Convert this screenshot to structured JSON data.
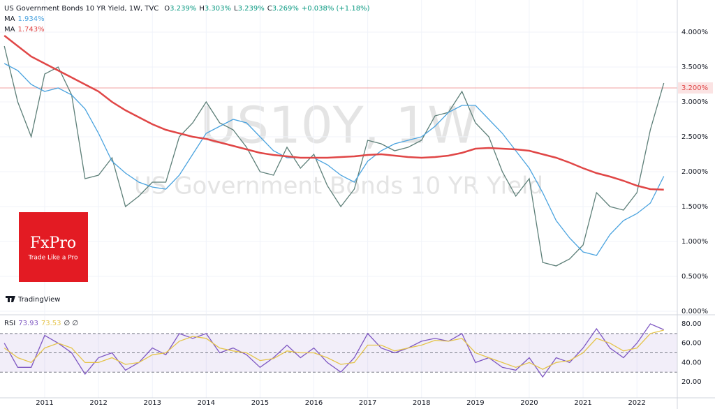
{
  "chart_data": [
    {
      "type": "line",
      "title": "US Government Bonds 10 YR Yield, 1W, TVC",
      "ohlc": [
        {
          "key": "O",
          "label": "3.239%"
        },
        {
          "key": "H",
          "label": "3.303%"
        },
        {
          "key": "L",
          "label": "3.239%"
        },
        {
          "key": "C",
          "label": "3.269%"
        }
      ],
      "change": "+0.038% (+1.18%)",
      "watermark": "US10Y, 1W",
      "watermark_subtitle": "US Government Bonds 10 YR Yield",
      "x": [
        2010.25,
        2010.5,
        2010.75,
        2011,
        2011.25,
        2011.5,
        2011.75,
        2012,
        2012.25,
        2012.5,
        2012.75,
        2013,
        2013.25,
        2013.5,
        2013.75,
        2014,
        2014.25,
        2014.5,
        2014.75,
        2015,
        2015.25,
        2015.5,
        2015.75,
        2016,
        2016.25,
        2016.5,
        2016.75,
        2017,
        2017.25,
        2017.5,
        2017.75,
        2018,
        2018.25,
        2018.5,
        2018.75,
        2019,
        2019.25,
        2019.5,
        2019.75,
        2020,
        2020.25,
        2020.5,
        2020.75,
        2021,
        2021.25,
        2021.5,
        2021.75,
        2022,
        2022.25,
        2022.5
      ],
      "series": [
        {
          "color": "#5d7f78",
          "values": [
            3.8,
            3.0,
            2.5,
            3.4,
            3.5,
            3.1,
            1.9,
            1.95,
            2.2,
            1.5,
            1.65,
            1.85,
            1.85,
            2.5,
            2.7,
            3.0,
            2.7,
            2.6,
            2.35,
            2.0,
            1.95,
            2.35,
            2.05,
            2.25,
            1.8,
            1.5,
            1.75,
            2.45,
            2.4,
            2.3,
            2.35,
            2.45,
            2.8,
            2.85,
            3.15,
            2.7,
            2.5,
            2.0,
            1.65,
            1.9,
            0.7,
            0.65,
            0.75,
            0.95,
            1.7,
            1.5,
            1.45,
            1.7,
            2.6,
            3.27
          ]
        },
        {
          "name": "MA",
          "legend_label": "1.934%",
          "color": "#4aa3df",
          "values": [
            3.55,
            3.45,
            3.25,
            3.15,
            3.2,
            3.1,
            2.9,
            2.55,
            2.15,
            1.98,
            1.85,
            1.78,
            1.75,
            1.95,
            2.25,
            2.55,
            2.65,
            2.75,
            2.7,
            2.5,
            2.3,
            2.2,
            2.2,
            2.2,
            2.1,
            1.95,
            1.85,
            2.15,
            2.3,
            2.4,
            2.45,
            2.5,
            2.65,
            2.85,
            2.95,
            2.95,
            2.75,
            2.55,
            2.3,
            2.05,
            1.7,
            1.3,
            1.05,
            0.85,
            0.8,
            1.1,
            1.3,
            1.4,
            1.55,
            1.934
          ]
        },
        {
          "name": "MA",
          "legend_label": "1.743%",
          "color": "#e04646",
          "values": [
            3.95,
            3.8,
            3.65,
            3.55,
            3.45,
            3.35,
            3.25,
            3.15,
            3.0,
            2.88,
            2.78,
            2.68,
            2.6,
            2.55,
            2.5,
            2.47,
            2.42,
            2.37,
            2.32,
            2.27,
            2.24,
            2.22,
            2.2,
            2.2,
            2.2,
            2.21,
            2.22,
            2.24,
            2.25,
            2.23,
            2.21,
            2.2,
            2.21,
            2.23,
            2.27,
            2.33,
            2.34,
            2.33,
            2.32,
            2.3,
            2.25,
            2.2,
            2.13,
            2.05,
            1.98,
            1.93,
            1.87,
            1.8,
            1.75,
            1.743
          ]
        }
      ],
      "price_line": {
        "value": 3.2,
        "label": "3.200%"
      },
      "xlim": [
        2010.17,
        2022.75
      ],
      "ylim": [
        -0.04,
        4.46
      ],
      "yticks": [
        {
          "value": 0,
          "label": "0.000%"
        },
        {
          "value": 0.5,
          "label": "0.500%"
        },
        {
          "value": 1,
          "label": "1.000%"
        },
        {
          "value": 1.5,
          "label": "1.500%"
        },
        {
          "value": 2,
          "label": "2.000%"
        },
        {
          "value": 2.5,
          "label": "2.500%"
        },
        {
          "value": 3,
          "label": "3.000%"
        },
        {
          "value": 3.5,
          "label": "3.500%"
        },
        {
          "value": 4,
          "label": "4.000%"
        }
      ],
      "grid": true
    },
    {
      "type": "line",
      "title": "RSI",
      "legend_extra": "∅ ∅",
      "x": [
        2010.25,
        2010.5,
        2010.75,
        2011,
        2011.25,
        2011.5,
        2011.75,
        2012,
        2012.25,
        2012.5,
        2012.75,
        2013,
        2013.25,
        2013.5,
        2013.75,
        2014,
        2014.25,
        2014.5,
        2014.75,
        2015,
        2015.25,
        2015.5,
        2015.75,
        2016,
        2016.25,
        2016.5,
        2016.75,
        2017,
        2017.25,
        2017.5,
        2017.75,
        2018,
        2018.25,
        2018.5,
        2018.75,
        2019,
        2019.25,
        2019.5,
        2019.75,
        2020,
        2020.25,
        2020.5,
        2020.75,
        2021,
        2021.25,
        2021.5,
        2021.75,
        2022,
        2022.25,
        2022.5
      ],
      "series": [
        {
          "legend_label": "73.93",
          "color": "#7e57c2",
          "values": [
            60,
            35,
            35,
            68,
            60,
            50,
            28,
            45,
            50,
            32,
            40,
            55,
            48,
            70,
            65,
            70,
            50,
            55,
            48,
            35,
            45,
            58,
            45,
            55,
            40,
            30,
            45,
            70,
            55,
            50,
            55,
            62,
            65,
            62,
            70,
            40,
            45,
            35,
            32,
            45,
            25,
            45,
            40,
            55,
            75,
            55,
            45,
            60,
            80,
            73.93
          ]
        },
        {
          "legend_label": "73.53",
          "color": "#e5c44a",
          "values": [
            55,
            45,
            40,
            55,
            60,
            55,
            40,
            40,
            45,
            38,
            40,
            48,
            50,
            62,
            67,
            65,
            55,
            52,
            50,
            42,
            44,
            52,
            50,
            50,
            45,
            38,
            40,
            58,
            58,
            52,
            55,
            58,
            63,
            62,
            65,
            50,
            45,
            40,
            35,
            40,
            33,
            40,
            42,
            50,
            65,
            60,
            52,
            55,
            70,
            73.53
          ]
        }
      ],
      "bands": [
        30,
        50,
        70
      ],
      "xlim": [
        2010.17,
        2022.75
      ],
      "xticks": [
        2011,
        2012,
        2013,
        2014,
        2015,
        2016,
        2017,
        2018,
        2019,
        2020,
        2021,
        2022
      ],
      "ylim": [
        3.4,
        88.7
      ],
      "yticks": [
        {
          "value": 20,
          "label": "20.00"
        },
        {
          "value": 40,
          "label": "40.00"
        },
        {
          "value": 60,
          "label": "60.00"
        },
        {
          "value": 80,
          "label": "80.00"
        }
      ]
    }
  ],
  "branding": {
    "logo": "FxPro",
    "slogan": "Trade Like a Pro",
    "platform": "TradingView"
  }
}
